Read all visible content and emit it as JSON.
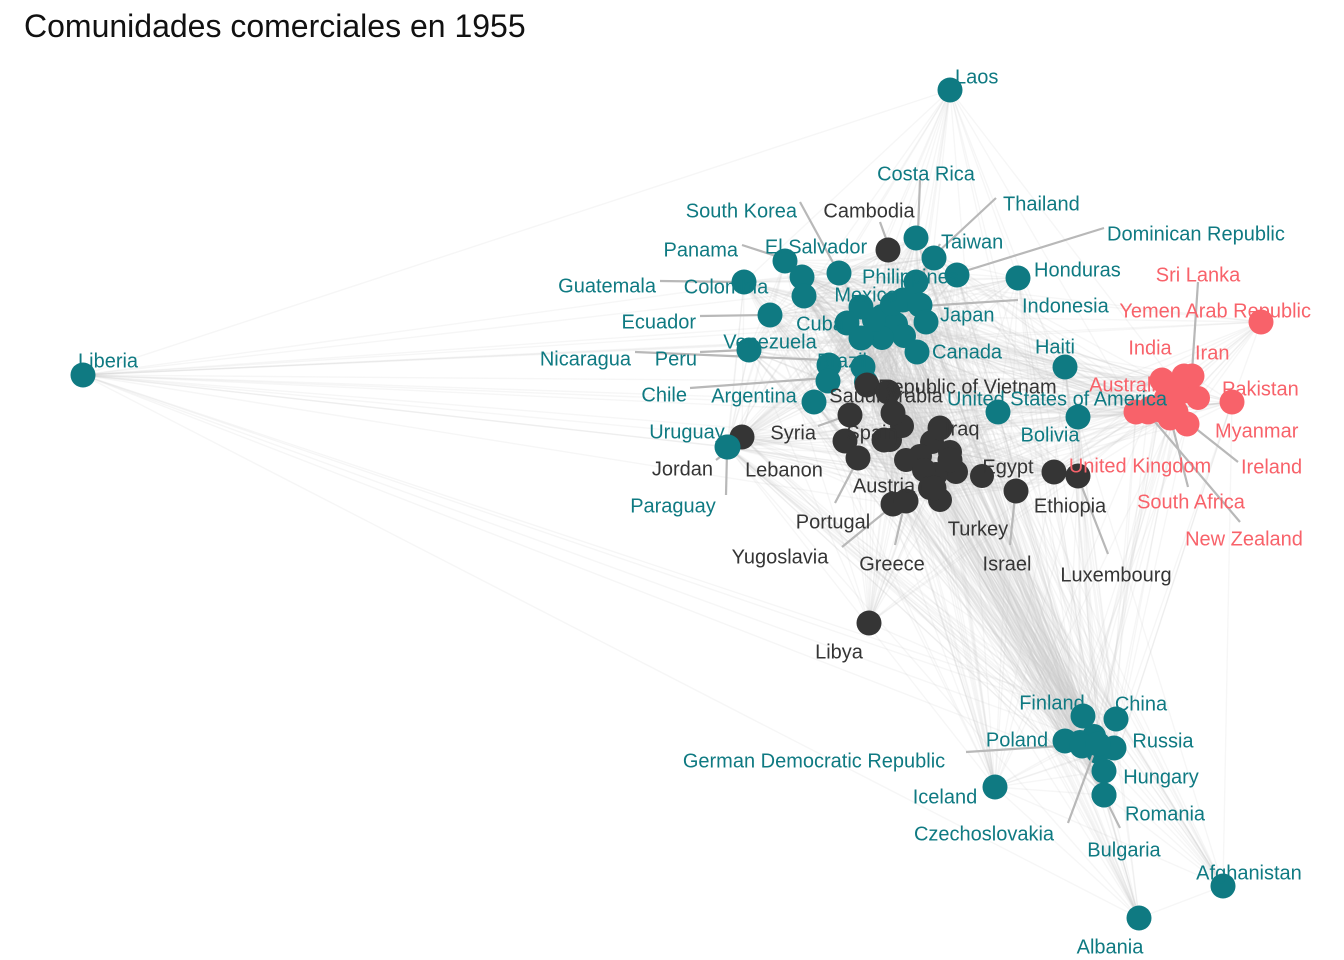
{
  "title": "Comunidades comerciales en 1955",
  "colors": {
    "teal": "#0f7a82",
    "dark": "#353535",
    "red": "#f8626a",
    "edge": "#c7c7c7",
    "leader": "#b8b8b8"
  },
  "nodes": [
    {
      "name": "Laos",
      "group": "teal"
    },
    {
      "name": "Costa Rica",
      "group": "teal"
    },
    {
      "name": "Thailand",
      "group": "teal"
    },
    {
      "name": "South Korea",
      "group": "teal"
    },
    {
      "name": "Cambodia",
      "group": "dark"
    },
    {
      "name": "Dominican Republic",
      "group": "teal"
    },
    {
      "name": "Taiwan",
      "group": "teal"
    },
    {
      "name": "Panama",
      "group": "teal"
    },
    {
      "name": "El Salvador",
      "group": "teal"
    },
    {
      "name": "Honduras",
      "group": "teal"
    },
    {
      "name": "Sri Lanka",
      "group": "red"
    },
    {
      "name": "Guatemala",
      "group": "teal"
    },
    {
      "name": "Colombia",
      "group": "teal"
    },
    {
      "name": "Philippines",
      "group": "teal"
    },
    {
      "name": "Mexico",
      "group": "teal"
    },
    {
      "name": "Indonesia",
      "group": "teal"
    },
    {
      "name": "Yemen Arab Republic",
      "group": "red"
    },
    {
      "name": "Ecuador",
      "group": "teal"
    },
    {
      "name": "Cuba",
      "group": "teal"
    },
    {
      "name": "Japan",
      "group": "teal"
    },
    {
      "name": "Venezuela",
      "group": "teal"
    },
    {
      "name": "Canada",
      "group": "teal"
    },
    {
      "name": "India",
      "group": "red"
    },
    {
      "name": "Iran",
      "group": "red"
    },
    {
      "name": "Nicaragua",
      "group": "teal"
    },
    {
      "name": "Peru",
      "group": "teal"
    },
    {
      "name": "Brazil",
      "group": "teal"
    },
    {
      "name": "Haiti",
      "group": "teal"
    },
    {
      "name": "Liberia",
      "group": "teal"
    },
    {
      "name": "Republic of Vietnam",
      "group": "dark"
    },
    {
      "name": "Australia",
      "group": "red"
    },
    {
      "name": "Pakistan",
      "group": "red"
    },
    {
      "name": "Chile",
      "group": "teal"
    },
    {
      "name": "Argentina",
      "group": "teal"
    },
    {
      "name": "Saudi Arabia",
      "group": "dark"
    },
    {
      "name": "United States of America",
      "group": "teal"
    },
    {
      "name": "Uruguay",
      "group": "teal"
    },
    {
      "name": "Syria",
      "group": "dark"
    },
    {
      "name": "Spain",
      "group": "dark"
    },
    {
      "name": "Iraq",
      "group": "dark"
    },
    {
      "name": "Bolivia",
      "group": "teal"
    },
    {
      "name": "Myanmar",
      "group": "red"
    },
    {
      "name": "Jordan",
      "group": "dark"
    },
    {
      "name": "Lebanon",
      "group": "dark"
    },
    {
      "name": "Egypt",
      "group": "dark"
    },
    {
      "name": "United Kingdom",
      "group": "red"
    },
    {
      "name": "Ireland",
      "group": "red"
    },
    {
      "name": "Paraguay",
      "group": "teal"
    },
    {
      "name": "Austria",
      "group": "dark"
    },
    {
      "name": "Ethiopia",
      "group": "dark"
    },
    {
      "name": "South Africa",
      "group": "red"
    },
    {
      "name": "Portugal",
      "group": "dark"
    },
    {
      "name": "Turkey",
      "group": "dark"
    },
    {
      "name": "New Zealand",
      "group": "red"
    },
    {
      "name": "Yugoslavia",
      "group": "dark"
    },
    {
      "name": "Greece",
      "group": "dark"
    },
    {
      "name": "Israel",
      "group": "dark"
    },
    {
      "name": "Luxembourg",
      "group": "dark"
    },
    {
      "name": "Libya",
      "group": "dark"
    },
    {
      "name": "Finland",
      "group": "teal"
    },
    {
      "name": "China",
      "group": "teal"
    },
    {
      "name": "Poland",
      "group": "teal"
    },
    {
      "name": "Russia",
      "group": "teal"
    },
    {
      "name": "German Democratic Republic",
      "group": "teal"
    },
    {
      "name": "Hungary",
      "group": "teal"
    },
    {
      "name": "Iceland",
      "group": "teal"
    },
    {
      "name": "Romania",
      "group": "teal"
    },
    {
      "name": "Czechoslovakia",
      "group": "teal"
    },
    {
      "name": "Bulgaria",
      "group": "teal"
    },
    {
      "name": "Afghanistan",
      "group": "teal"
    },
    {
      "name": "Albania",
      "group": "teal"
    }
  ]
}
